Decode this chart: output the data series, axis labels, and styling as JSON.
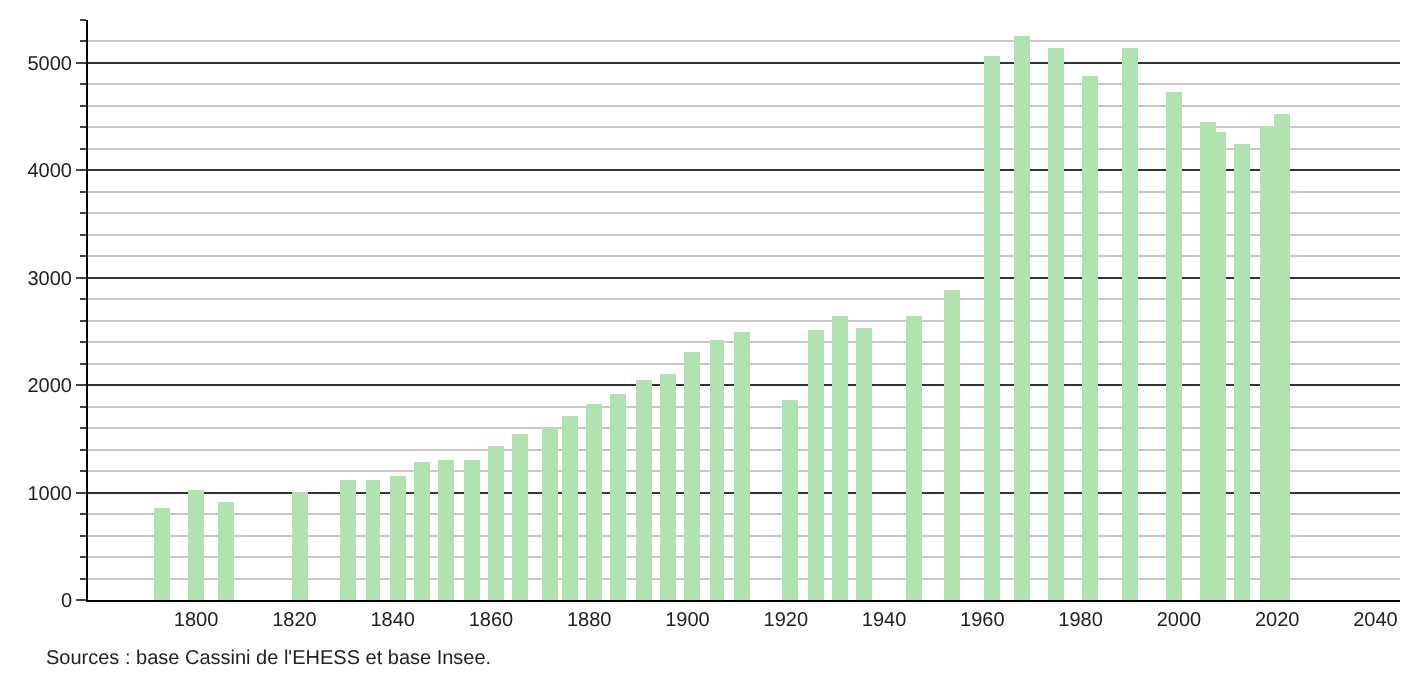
{
  "chart_data": {
    "type": "bar",
    "color": "#b0e3b0",
    "x": [
      1793,
      1800,
      1806,
      1821,
      1831,
      1836,
      1841,
      1846,
      1851,
      1856,
      1861,
      1866,
      1872,
      1876,
      1881,
      1886,
      1891,
      1896,
      1901,
      1906,
      1911,
      1921,
      1926,
      1931,
      1936,
      1946,
      1954,
      1962,
      1968,
      1975,
      1982,
      1990,
      1999,
      2006,
      2008,
      2013,
      2018,
      2021
    ],
    "values": [
      860,
      1030,
      920,
      1010,
      1110,
      1110,
      1160,
      1280,
      1310,
      1310,
      1440,
      1550,
      1610,
      1720,
      1830,
      1910,
      2040,
      2110,
      2300,
      2420,
      2500,
      1870,
      2520,
      2650,
      2540,
      2650,
      2880,
      5060,
      5250,
      5140,
      4880,
      5140,
      4730,
      4450,
      4360,
      4240,
      4410,
      4520
    ],
    "xlim": [
      1778,
      2045
    ],
    "xticks": [
      1800,
      1820,
      1840,
      1860,
      1880,
      1900,
      1920,
      1940,
      1960,
      1980,
      2000,
      2020,
      2040
    ],
    "ylim": [
      0,
      5400
    ],
    "yticks": [
      0,
      {
        "value": 200,
        "label": null
      },
      {
        "value": 400,
        "label": null
      },
      {
        "value": 600,
        "label": null
      },
      {
        "value": 800,
        "label": null
      },
      1000,
      {
        "value": 1200,
        "label": null
      },
      {
        "value": 1400,
        "label": null
      },
      {
        "value": 1600,
        "label": null
      },
      {
        "value": 1800,
        "label": null
      },
      2000,
      {
        "value": 2200,
        "label": null
      },
      {
        "value": 2400,
        "label": null
      },
      {
        "value": 2600,
        "label": null
      },
      {
        "value": 2800,
        "label": null
      },
      3000,
      {
        "value": 3200,
        "label": null
      },
      {
        "value": 3400,
        "label": null
      },
      {
        "value": 3600,
        "label": null
      },
      {
        "value": 3800,
        "label": null
      },
      4000,
      {
        "value": 4200,
        "label": null
      },
      {
        "value": 4400,
        "label": null
      },
      {
        "value": 4600,
        "label": null
      },
      {
        "value": 4800,
        "label": null
      },
      5000,
      {
        "value": 5200,
        "label": null
      },
      {
        "value": 5400,
        "label": null
      }
    ],
    "grid": "y",
    "annotations": [
      "Sources : base Cassini de l'EHESS et base Insee."
    ]
  }
}
